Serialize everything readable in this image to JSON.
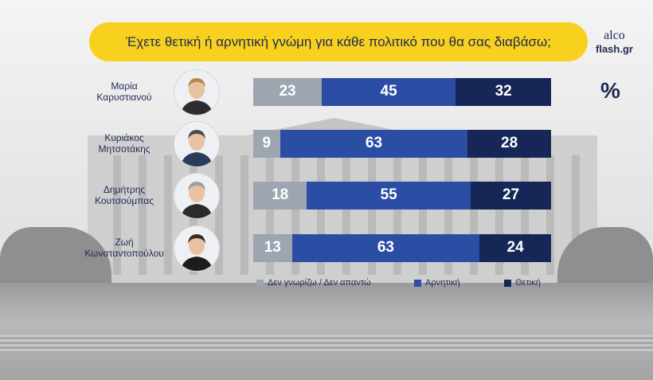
{
  "title": "Έχετε θετική ή αρνητική γνώμη για κάθε πολιτικό που θα σας διαβάσω;",
  "logo": {
    "line1": "alco",
    "line2": "flash.gr"
  },
  "unit": "%",
  "colors": {
    "dont_know": "#9da5b1",
    "negative": "#2b4ea4",
    "positive": "#152657",
    "title_bg": "#f7d11d",
    "text": "#1f2a55"
  },
  "chart_data": {
    "type": "bar",
    "orientation": "horizontal",
    "stacked": true,
    "categories": [
      "Μαρία Καρυστιανού",
      "Κυριάκος Μητσοτάκης",
      "Δημήτρης Κουτσούμπας",
      "Ζωή Κωνσταντοπούλου"
    ],
    "category_lines": [
      [
        "Μαρία",
        "Καρυστιανού"
      ],
      [
        "Κυριάκος",
        "Μητσοτάκης"
      ],
      [
        "Δημήτρης",
        "Κουτσούμπας"
      ],
      [
        "Ζωή",
        "Κωνσταντοπούλου"
      ]
    ],
    "series": [
      {
        "name": "Δεν γνωρίζω / Δεν απαντώ",
        "values": [
          23,
          9,
          18,
          13
        ]
      },
      {
        "name": "Αρνητική",
        "values": [
          45,
          63,
          55,
          63
        ]
      },
      {
        "name": "Θετική",
        "values": [
          32,
          28,
          27,
          24
        ]
      }
    ],
    "ylim": [
      0,
      100
    ],
    "legend_position": "bottom"
  }
}
